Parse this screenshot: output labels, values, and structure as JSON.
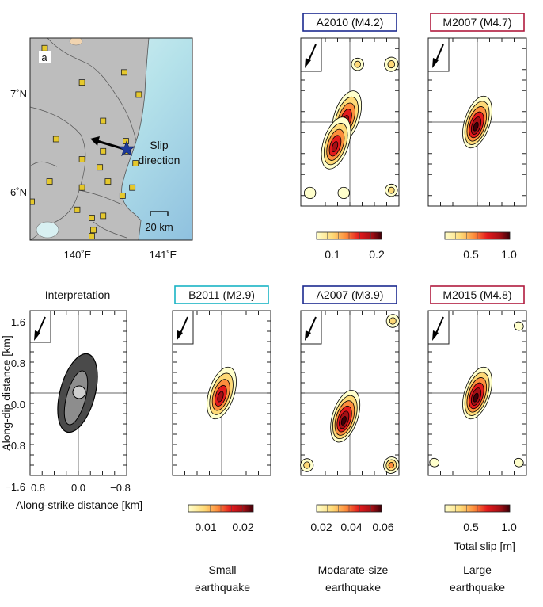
{
  "map": {
    "panel_label": "a",
    "lat_ticks": [
      "7˚N",
      "6˚N"
    ],
    "lon_ticks": [
      "140˚E",
      "141˚E"
    ],
    "arrow_label_line1": "Slip",
    "arrow_label_line2": "direction",
    "scale_label": "20 km",
    "stations": [
      [
        0.09,
        0.05
      ],
      [
        0.58,
        0.17
      ],
      [
        0.32,
        0.22
      ],
      [
        0.67,
        0.28
      ],
      [
        0.45,
        0.41
      ],
      [
        0.16,
        0.5
      ],
      [
        0.59,
        0.51
      ],
      [
        0.45,
        0.56
      ],
      [
        0.6,
        0.56
      ],
      [
        0.32,
        0.6
      ],
      [
        0.43,
        0.64
      ],
      [
        0.65,
        0.62
      ],
      [
        0.12,
        0.71
      ],
      [
        0.32,
        0.74
      ],
      [
        0.48,
        0.71
      ],
      [
        0.57,
        0.78
      ],
      [
        0.63,
        0.74
      ],
      [
        0.01,
        0.81
      ],
      [
        0.29,
        0.85
      ],
      [
        0.45,
        0.88
      ],
      [
        0.38,
        0.89
      ],
      [
        0.39,
        0.95
      ],
      [
        0.38,
        0.98
      ]
    ]
  },
  "panels": [
    {
      "id": "A2010",
      "title": "A2010 (M4.2)",
      "color": "#1c2a8f",
      "colorbar_ticks": [
        "0.1",
        "0.2"
      ],
      "colorbar_unit": ""
    },
    {
      "id": "M2007a",
      "title": "M2007 (M4.7)",
      "color": "#b01a3e",
      "colorbar_ticks": [
        "0.5",
        "1.0"
      ],
      "colorbar_unit": ""
    },
    {
      "id": "B2011",
      "title": "B2011 (M2.9)",
      "color": "#19b4c4",
      "colorbar_ticks": [
        "0.01",
        "0.02"
      ],
      "colorbar_unit": ""
    },
    {
      "id": "A2007",
      "title": "A2007 (M3.9)",
      "color": "#1c2a8f",
      "colorbar_ticks": [
        "0.02",
        "0.04",
        "0.06"
      ],
      "colorbar_unit": ""
    },
    {
      "id": "M2015",
      "title": "M2015 (M4.8)",
      "color": "#b01a3e",
      "colorbar_ticks": [
        "0.5",
        "1.0"
      ],
      "colorbar_unit": "Total slip [m]"
    }
  ],
  "interpretation": {
    "title": "Interpretation",
    "ylabel": "Along-dip distance [km]",
    "xlabel": "Along-strike distance [km]",
    "yticks": [
      "1.6",
      "0.8",
      "0.0",
      "−0.8",
      "−1.6"
    ],
    "xticks": [
      "0.8",
      "0.0",
      "−0.8"
    ]
  },
  "categories": [
    {
      "line1": "Small",
      "line2": "earthquake",
      "color": "#19b4c4"
    },
    {
      "line1": "Modarate-size",
      "line2": "earthquake",
      "color": "#1c2a8f"
    },
    {
      "line1": "Large",
      "line2": "earthquake",
      "color": "#b01a3e"
    }
  ],
  "chart_data": [
    {
      "type": "heatmap",
      "title": "A2010 (M4.2)",
      "colorbar_range": [
        0.05,
        0.22
      ],
      "colorbar_ticks": [
        0.1,
        0.2
      ],
      "peaks": [
        {
          "x": -0.1,
          "y": 0.1,
          "slip": 0.2
        },
        {
          "x": -0.45,
          "y": -0.4,
          "slip": 0.18
        },
        {
          "x": 0.25,
          "y": 1.1,
          "slip": 0.06
        },
        {
          "x": 1.35,
          "y": 1.1,
          "slip": 0.08
        },
        {
          "x": 1.35,
          "y": -1.3,
          "slip": 0.06
        },
        {
          "x": -1.3,
          "y": -1.35,
          "slip": 0.05
        },
        {
          "x": -0.2,
          "y": -1.35,
          "slip": 0.05
        }
      ]
    },
    {
      "type": "heatmap",
      "title": "M2007 (M4.7)",
      "colorbar_range": [
        0.1,
        1.05
      ],
      "colorbar_ticks": [
        0.5,
        1.0
      ],
      "peaks": [
        {
          "x": 0.0,
          "y": 0.0,
          "slip": 1.0
        }
      ]
    },
    {
      "type": "heatmap",
      "title": "B2011 (M2.9)",
      "colorbar_range": [
        0.002,
        0.022
      ],
      "colorbar_ticks": [
        0.01,
        0.02
      ],
      "peaks": [
        {
          "x": 0.0,
          "y": 0.0,
          "slip": 0.02
        }
      ]
    },
    {
      "type": "heatmap",
      "title": "A2007 (M3.9)",
      "colorbar_range": [
        0.015,
        0.065
      ],
      "colorbar_ticks": [
        0.02,
        0.04,
        0.06
      ],
      "peaks": [
        {
          "x": -0.15,
          "y": -0.45,
          "slip": 0.06
        },
        {
          "x": 1.4,
          "y": 1.4,
          "slip": 0.02
        },
        {
          "x": 1.35,
          "y": -1.4,
          "slip": 0.03
        },
        {
          "x": -1.4,
          "y": -1.4,
          "slip": 0.02
        }
      ]
    },
    {
      "type": "heatmap",
      "title": "M2015 (M4.8)",
      "colorbar_range": [
        0.1,
        1.05
      ],
      "colorbar_ticks": [
        0.5,
        1.0
      ],
      "colorbar_label": "Total slip [m]",
      "peaks": [
        {
          "x": 0.0,
          "y": 0.0,
          "slip": 1.0
        },
        {
          "x": 1.35,
          "y": 1.3,
          "slip": 0.1
        },
        {
          "x": 1.35,
          "y": -1.35,
          "slip": 0.1
        },
        {
          "x": -1.4,
          "y": -1.35,
          "slip": 0.1
        }
      ]
    },
    {
      "type": "scatter",
      "title": "Interpretation",
      "xlabel": "Along-strike distance [km]",
      "ylabel": "Along-dip distance [km]",
      "xlim": [
        1.1,
        -1.1
      ],
      "ylim": [
        -1.6,
        1.6
      ]
    }
  ]
}
